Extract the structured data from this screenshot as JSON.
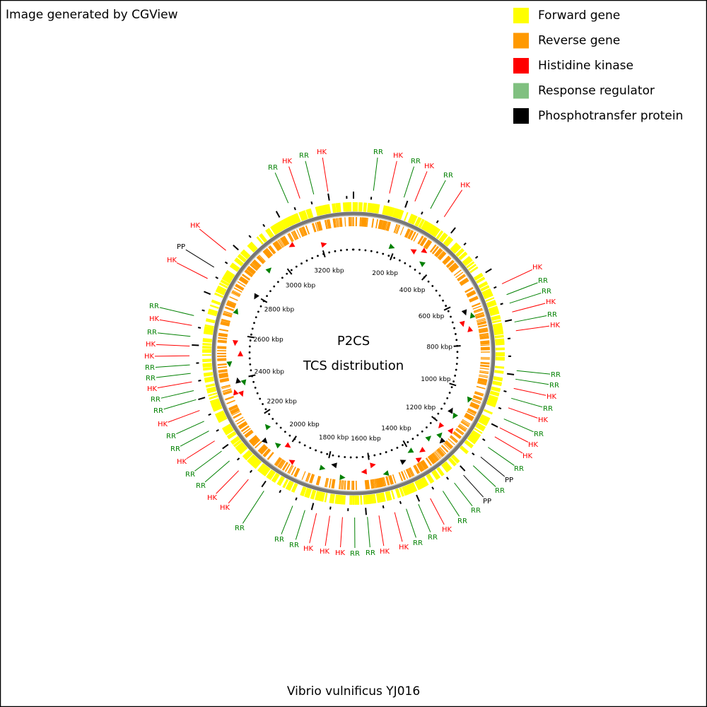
{
  "header": {
    "note": "Image generated by CGView"
  },
  "legend": [
    "Forward gene",
    "Reverse gene",
    "Histidine kinase",
    "Response regulator",
    "Phosphotransfer protein"
  ],
  "center": {
    "title": "P2CS",
    "subtitle": "TCS distribution"
  },
  "footer": "Vibrio vulnificus YJ016",
  "scale_labels": [
    "200 kbp",
    "400 kbp",
    "600 kbp",
    "800 kbp",
    "1000 kbp",
    "1200 kbp",
    "1400 kbp",
    "1600 kbp",
    "1800 kbp",
    "2000 kbp",
    "2200 kbp",
    "2400 kbp",
    "2600 kbp",
    "2800 kbp",
    "3000 kbp",
    "3200 kbp"
  ],
  "labels": [
    "RR",
    "HK",
    "RR",
    "HK",
    "RR",
    "HK",
    "HK",
    "RR",
    "RR",
    "HK",
    "RR",
    "HK",
    "RR",
    "RR",
    "HK",
    "RR",
    "HK",
    "RR",
    "HK",
    "HK",
    "RR",
    "PP",
    "RR",
    "PP",
    "RR",
    "RR",
    "HK",
    "RR",
    "RR",
    "HK",
    "HK",
    "RR",
    "RR",
    "HK",
    "HK",
    "HK",
    "RR",
    "RR",
    "RR",
    "HK",
    "HK",
    "RR",
    "RR",
    "HK",
    "RR",
    "RR",
    "HK",
    "RR",
    "RR",
    "HK",
    "RR",
    "RR",
    "HK",
    "HK",
    "RR",
    "HK",
    "RR",
    "HK",
    "PP",
    "HK",
    "RR",
    "HK",
    "RR",
    "HK"
  ]
}
